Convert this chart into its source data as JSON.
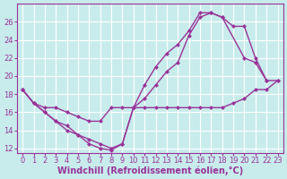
{
  "xlabel": "Windchill (Refroidissement éolien,°C)",
  "bg_color": "#c8ecec",
  "line_color": "#993399",
  "grid_color": "#ffffff",
  "line1_x": [
    0,
    1,
    2,
    3,
    4,
    5,
    6,
    7,
    8,
    9,
    10,
    11,
    12,
    13,
    14,
    15,
    16,
    17,
    18,
    19,
    20,
    21,
    22,
    23
  ],
  "line1_y": [
    18.5,
    17.0,
    16.0,
    15.0,
    14.5,
    13.5,
    13.0,
    12.5,
    12.0,
    12.5,
    16.5,
    16.5,
    16.5,
    16.5,
    16.5,
    16.5,
    16.5,
    16.5,
    16.5,
    17.0,
    17.5,
    18.5,
    18.5,
    19.5
  ],
  "line2_x": [
    0,
    1,
    2,
    3,
    4,
    5,
    6,
    7,
    8,
    9,
    10,
    11,
    12,
    13,
    14,
    15,
    16,
    17,
    18,
    19,
    20,
    21,
    22
  ],
  "line2_y": [
    18.5,
    17.0,
    16.5,
    16.5,
    16.0,
    15.5,
    15.0,
    15.0,
    16.5,
    16.5,
    16.5,
    17.5,
    19.0,
    20.5,
    21.5,
    24.5,
    26.5,
    27.0,
    26.5,
    25.5,
    25.5,
    22.0,
    19.5
  ],
  "line3_x": [
    0,
    1,
    2,
    3,
    4,
    5,
    6,
    7,
    8,
    9,
    10,
    11,
    12,
    13,
    14,
    15,
    16,
    17,
    18,
    20,
    21,
    22,
    23
  ],
  "line3_y": [
    18.5,
    17.0,
    16.0,
    15.0,
    14.0,
    13.5,
    12.5,
    12.0,
    11.8,
    12.5,
    16.5,
    19.0,
    21.0,
    22.5,
    23.5,
    25.0,
    27.0,
    27.0,
    26.5,
    22.0,
    21.5,
    19.5,
    19.5
  ],
  "xlim": [
    -0.5,
    23.5
  ],
  "ylim": [
    11.5,
    28
  ],
  "xticks": [
    0,
    1,
    2,
    3,
    4,
    5,
    6,
    7,
    8,
    9,
    10,
    11,
    12,
    13,
    14,
    15,
    16,
    17,
    18,
    19,
    20,
    21,
    22,
    23
  ],
  "yticks": [
    12,
    14,
    16,
    18,
    20,
    22,
    24,
    26
  ],
  "marker": "D",
  "markersize": 2.0,
  "linewidth": 1.0,
  "xlabel_fontsize": 7,
  "tick_fontsize": 6
}
